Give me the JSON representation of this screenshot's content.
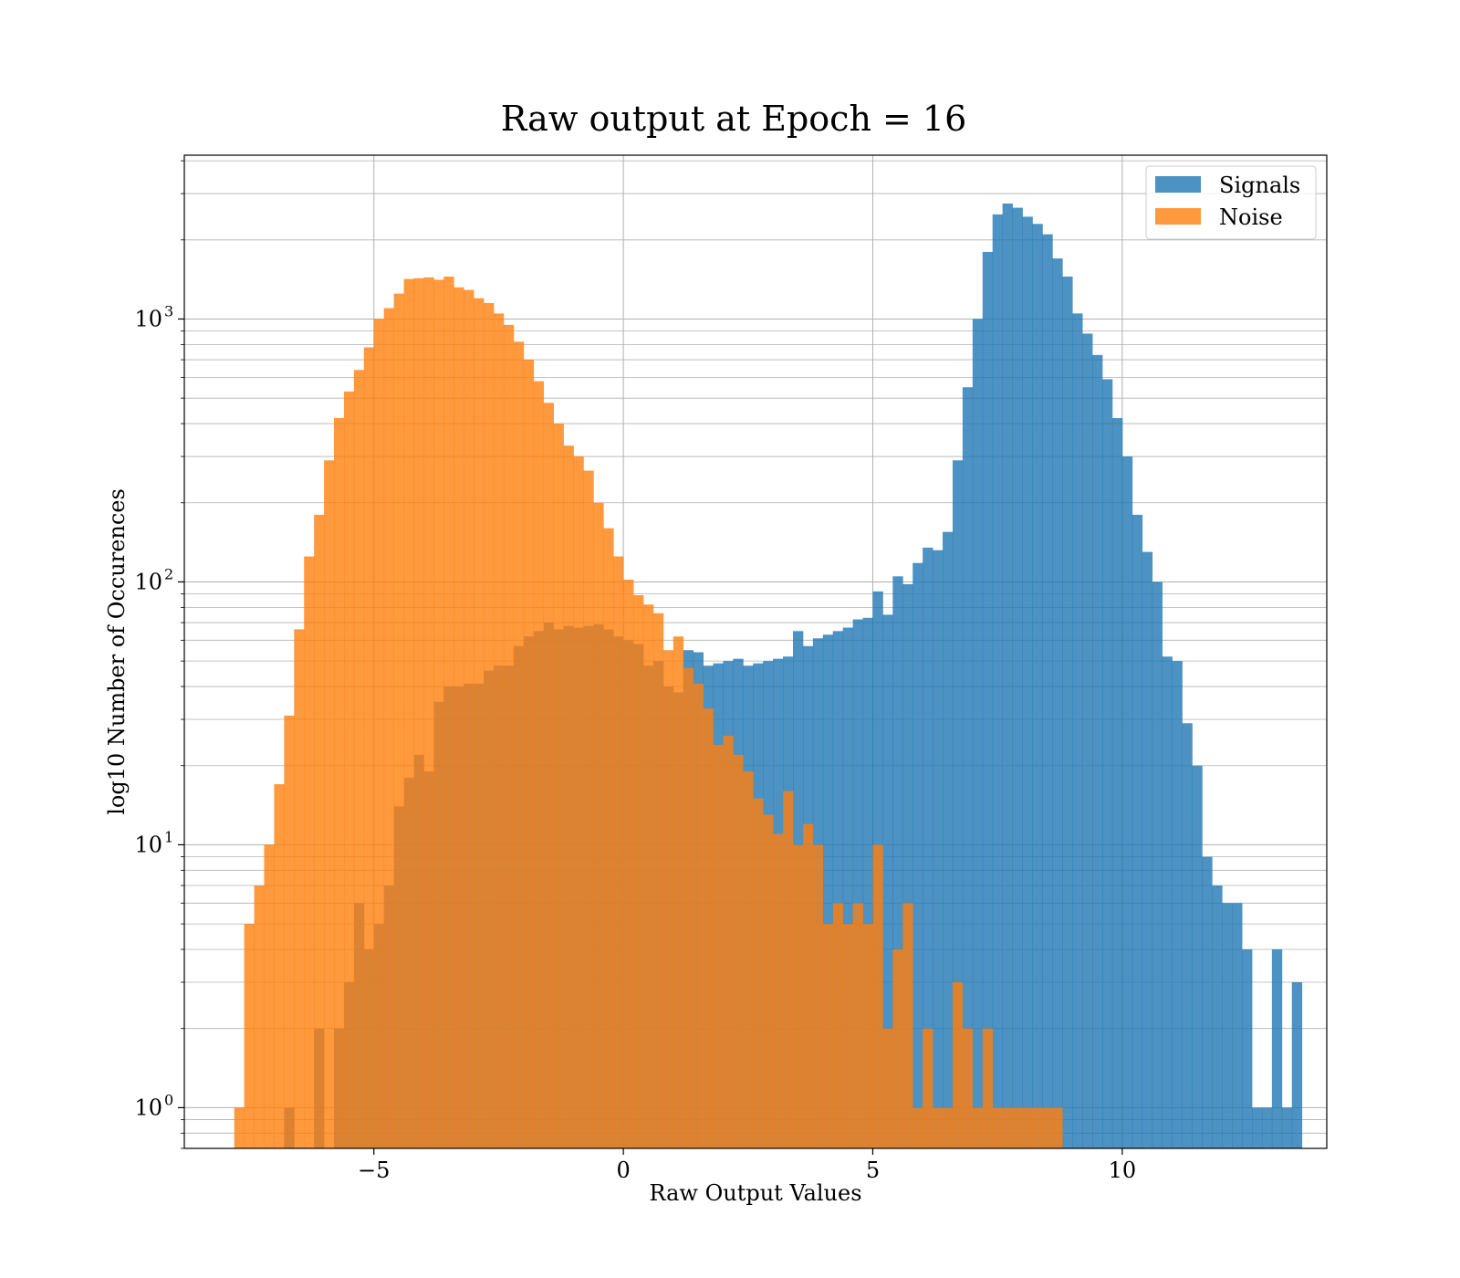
{
  "chart_data": {
    "type": "bar",
    "title": "Raw output at Epoch = 16",
    "xlabel": "Raw Output Values",
    "ylabel": "log10 Number of Occurences",
    "xlim": [
      -8.8,
      14.1
    ],
    "ylim": [
      0.7,
      4200
    ],
    "y_scale": "log",
    "grid": true,
    "legend_position": "top-right",
    "x_ticks": [
      -5,
      0,
      5,
      10
    ],
    "x_tick_labels": [
      "−5",
      "0",
      "5",
      "10"
    ],
    "y_ticks": [
      1,
      10,
      100,
      1000
    ],
    "y_tick_labels": [
      {
        "base": "10",
        "exp": "0"
      },
      {
        "base": "10",
        "exp": "1"
      },
      {
        "base": "10",
        "exp": "2"
      },
      {
        "base": "10",
        "exp": "3"
      }
    ],
    "bin_width": 0.2,
    "series": [
      {
        "name": "Signals",
        "color": "#1f77b4",
        "opacity": 0.8,
        "bins": [
          [
            -6.7,
            1
          ],
          [
            -6.1,
            2
          ],
          [
            -5.7,
            2
          ],
          [
            -5.5,
            3
          ],
          [
            -5.3,
            6
          ],
          [
            -5.1,
            4
          ],
          [
            -4.9,
            5
          ],
          [
            -4.7,
            7
          ],
          [
            -4.5,
            14
          ],
          [
            -4.3,
            18
          ],
          [
            -4.1,
            22
          ],
          [
            -3.9,
            19
          ],
          [
            -3.7,
            35
          ],
          [
            -3.5,
            40
          ],
          [
            -3.3,
            40
          ],
          [
            -3.1,
            41
          ],
          [
            -2.9,
            41
          ],
          [
            -2.7,
            46
          ],
          [
            -2.5,
            48
          ],
          [
            -2.3,
            48
          ],
          [
            -2.1,
            57
          ],
          [
            -1.9,
            62
          ],
          [
            -1.7,
            65
          ],
          [
            -1.5,
            70
          ],
          [
            -1.3,
            66
          ],
          [
            -1.1,
            68
          ],
          [
            -0.9,
            67
          ],
          [
            -0.7,
            68
          ],
          [
            -0.5,
            69
          ],
          [
            -0.3,
            66
          ],
          [
            -0.1,
            62
          ],
          [
            0.1,
            60
          ],
          [
            0.3,
            58
          ],
          [
            0.5,
            48
          ],
          [
            0.7,
            50
          ],
          [
            0.9,
            40
          ],
          [
            1.1,
            38
          ],
          [
            1.3,
            55
          ],
          [
            1.5,
            54
          ],
          [
            1.7,
            48
          ],
          [
            1.9,
            49
          ],
          [
            2.1,
            50
          ],
          [
            2.3,
            51
          ],
          [
            2.5,
            48
          ],
          [
            2.7,
            49
          ],
          [
            2.9,
            50
          ],
          [
            3.1,
            51
          ],
          [
            3.3,
            52
          ],
          [
            3.5,
            65
          ],
          [
            3.7,
            57
          ],
          [
            3.9,
            61
          ],
          [
            4.1,
            63
          ],
          [
            4.3,
            65
          ],
          [
            4.5,
            67
          ],
          [
            4.7,
            72
          ],
          [
            4.9,
            73
          ],
          [
            5.1,
            92
          ],
          [
            5.3,
            75
          ],
          [
            5.5,
            105
          ],
          [
            5.7,
            98
          ],
          [
            5.9,
            118
          ],
          [
            6.1,
            135
          ],
          [
            6.3,
            132
          ],
          [
            6.5,
            155
          ],
          [
            6.7,
            290
          ],
          [
            6.9,
            550
          ],
          [
            7.1,
            1000
          ],
          [
            7.3,
            1800
          ],
          [
            7.5,
            2500
          ],
          [
            7.7,
            2750
          ],
          [
            7.9,
            2650
          ],
          [
            8.1,
            2450
          ],
          [
            8.3,
            2300
          ],
          [
            8.5,
            2100
          ],
          [
            8.7,
            1700
          ],
          [
            8.9,
            1450
          ],
          [
            9.1,
            1050
          ],
          [
            9.3,
            880
          ],
          [
            9.5,
            730
          ],
          [
            9.7,
            590
          ],
          [
            9.9,
            420
          ],
          [
            10.1,
            300
          ],
          [
            10.3,
            180
          ],
          [
            10.5,
            130
          ],
          [
            10.7,
            100
          ],
          [
            10.9,
            52
          ],
          [
            11.1,
            50
          ],
          [
            11.3,
            29
          ],
          [
            11.5,
            20
          ],
          [
            11.7,
            9
          ],
          [
            11.9,
            7
          ],
          [
            12.1,
            6
          ],
          [
            12.3,
            6
          ],
          [
            12.5,
            4
          ],
          [
            12.7,
            1
          ],
          [
            12.9,
            1
          ],
          [
            13.1,
            4
          ],
          [
            13.3,
            1
          ],
          [
            13.5,
            3
          ]
        ]
      },
      {
        "name": "Noise",
        "color": "#ff7f0e",
        "opacity": 0.8,
        "bins": [
          [
            -7.7,
            1
          ],
          [
            -7.5,
            5
          ],
          [
            -7.3,
            7
          ],
          [
            -7.1,
            10
          ],
          [
            -6.9,
            17
          ],
          [
            -6.7,
            31
          ],
          [
            -6.5,
            66
          ],
          [
            -6.3,
            125
          ],
          [
            -6.1,
            180
          ],
          [
            -5.9,
            290
          ],
          [
            -5.7,
            420
          ],
          [
            -5.5,
            530
          ],
          [
            -5.3,
            640
          ],
          [
            -5.1,
            780
          ],
          [
            -4.9,
            1000
          ],
          [
            -4.7,
            1100
          ],
          [
            -4.5,
            1250
          ],
          [
            -4.3,
            1420
          ],
          [
            -4.1,
            1430
          ],
          [
            -3.9,
            1440
          ],
          [
            -3.7,
            1410
          ],
          [
            -3.5,
            1450
          ],
          [
            -3.3,
            1320
          ],
          [
            -3.1,
            1290
          ],
          [
            -2.9,
            1200
          ],
          [
            -2.7,
            1150
          ],
          [
            -2.5,
            1050
          ],
          [
            -2.3,
            950
          ],
          [
            -2.1,
            820
          ],
          [
            -1.9,
            700
          ],
          [
            -1.7,
            580
          ],
          [
            -1.5,
            480
          ],
          [
            -1.3,
            400
          ],
          [
            -1.1,
            330
          ],
          [
            -0.9,
            300
          ],
          [
            -0.7,
            265
          ],
          [
            -0.5,
            200
          ],
          [
            -0.3,
            160
          ],
          [
            -0.1,
            125
          ],
          [
            0.1,
            102
          ],
          [
            0.3,
            89
          ],
          [
            0.5,
            82
          ],
          [
            0.7,
            76
          ],
          [
            0.9,
            55
          ],
          [
            1.1,
            62
          ],
          [
            1.3,
            47
          ],
          [
            1.5,
            41
          ],
          [
            1.7,
            33
          ],
          [
            1.9,
            24
          ],
          [
            2.1,
            26
          ],
          [
            2.3,
            22
          ],
          [
            2.5,
            19
          ],
          [
            2.7,
            15
          ],
          [
            2.9,
            13
          ],
          [
            3.1,
            11
          ],
          [
            3.3,
            16
          ],
          [
            3.5,
            10
          ],
          [
            3.7,
            12
          ],
          [
            3.9,
            10
          ],
          [
            4.1,
            5
          ],
          [
            4.3,
            6
          ],
          [
            4.5,
            5
          ],
          [
            4.7,
            6
          ],
          [
            4.9,
            5
          ],
          [
            5.1,
            10
          ],
          [
            5.3,
            2
          ],
          [
            5.5,
            4
          ],
          [
            5.7,
            6
          ],
          [
            5.9,
            1
          ],
          [
            6.1,
            2
          ],
          [
            6.3,
            1
          ],
          [
            6.5,
            1
          ],
          [
            6.7,
            3
          ],
          [
            6.9,
            2
          ],
          [
            7.1,
            1
          ],
          [
            7.3,
            2
          ],
          [
            7.5,
            1
          ],
          [
            7.7,
            1
          ],
          [
            7.9,
            1
          ],
          [
            8.1,
            1
          ],
          [
            8.3,
            1
          ],
          [
            8.5,
            1
          ],
          [
            8.7,
            1
          ]
        ]
      }
    ]
  }
}
